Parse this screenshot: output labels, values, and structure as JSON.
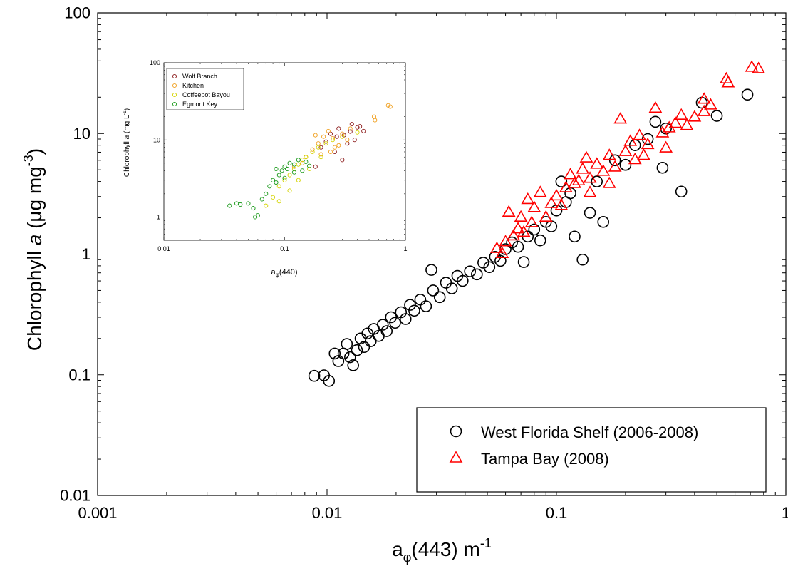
{
  "chart_data": [
    {
      "type": "scatter",
      "scale": "log-log",
      "xlabel": "a",
      "xlabel_sub": "φ",
      "xlabel_rest": "(443) m",
      "xlabel_sup": "-1",
      "ylabel_pre": "Chlorophyll ",
      "ylabel_a": "a",
      "ylabel_rest": " (μ",
      "ylabel_mid": "g mg",
      "ylabel_sup": "-3",
      "ylabel_close": ")",
      "xlim": [
        0.001,
        1
      ],
      "ylim": [
        0.01,
        100
      ],
      "x_ticks": [
        "0.001",
        "0.01",
        "0.1",
        "1"
      ],
      "y_ticks": [
        "0.01",
        "0.1",
        "1",
        "10",
        "100"
      ],
      "legend_position": "bottom-right",
      "series": [
        {
          "name": "West Florida Shelf (2006-2008)",
          "marker": "circle",
          "color": "#000000",
          "points": [
            [
              0.0088,
              0.098
            ],
            [
              0.0097,
              0.099
            ],
            [
              0.0102,
              0.089
            ],
            [
              0.0108,
              0.15
            ],
            [
              0.0112,
              0.13
            ],
            [
              0.0118,
              0.15
            ],
            [
              0.0122,
              0.18
            ],
            [
              0.0126,
              0.14
            ],
            [
              0.013,
              0.12
            ],
            [
              0.0135,
              0.16
            ],
            [
              0.014,
              0.2
            ],
            [
              0.0145,
              0.17
            ],
            [
              0.015,
              0.22
            ],
            [
              0.0155,
              0.19
            ],
            [
              0.016,
              0.24
            ],
            [
              0.0168,
              0.21
            ],
            [
              0.0175,
              0.26
            ],
            [
              0.0182,
              0.23
            ],
            [
              0.019,
              0.3
            ],
            [
              0.0198,
              0.27
            ],
            [
              0.021,
              0.33
            ],
            [
              0.022,
              0.29
            ],
            [
              0.023,
              0.38
            ],
            [
              0.024,
              0.34
            ],
            [
              0.0255,
              0.42
            ],
            [
              0.027,
              0.37
            ],
            [
              0.0285,
              0.74
            ],
            [
              0.029,
              0.5
            ],
            [
              0.031,
              0.44
            ],
            [
              0.033,
              0.58
            ],
            [
              0.035,
              0.52
            ],
            [
              0.037,
              0.66
            ],
            [
              0.039,
              0.6
            ],
            [
              0.042,
              0.72
            ],
            [
              0.045,
              0.68
            ],
            [
              0.048,
              0.85
            ],
            [
              0.051,
              0.78
            ],
            [
              0.054,
              0.95
            ],
            [
              0.057,
              0.88
            ],
            [
              0.06,
              1.1
            ],
            [
              0.064,
              1.25
            ],
            [
              0.068,
              1.15
            ],
            [
              0.072,
              0.86
            ],
            [
              0.075,
              1.4
            ],
            [
              0.08,
              1.6
            ],
            [
              0.085,
              1.3
            ],
            [
              0.09,
              1.85
            ],
            [
              0.095,
              1.7
            ],
            [
              0.1,
              2.3
            ],
            [
              0.105,
              4.0
            ],
            [
              0.11,
              2.7
            ],
            [
              0.115,
              3.2
            ],
            [
              0.12,
              1.4
            ],
            [
              0.13,
              0.9
            ],
            [
              0.14,
              2.2
            ],
            [
              0.16,
              1.85
            ],
            [
              0.2,
              5.5
            ],
            [
              0.29,
              5.2
            ],
            [
              0.35,
              3.3
            ],
            [
              0.43,
              18.0
            ],
            [
              0.5,
              14.0
            ],
            [
              0.68,
              21.0
            ],
            [
              0.25,
              9.0
            ],
            [
              0.3,
              11.0
            ],
            [
              0.27,
              12.5
            ],
            [
              0.22,
              8.0
            ],
            [
              0.18,
              6.0
            ],
            [
              0.15,
              4.0
            ]
          ]
        },
        {
          "name": "Tampa Bay (2008)",
          "marker": "triangle",
          "color": "#ff0000",
          "points": [
            [
              0.055,
              1.1
            ],
            [
              0.058,
              1.0
            ],
            [
              0.06,
              1.25
            ],
            [
              0.062,
              2.2
            ],
            [
              0.065,
              1.4
            ],
            [
              0.068,
              1.6
            ],
            [
              0.07,
              2.0
            ],
            [
              0.072,
              1.5
            ],
            [
              0.075,
              2.8
            ],
            [
              0.078,
              1.8
            ],
            [
              0.08,
              2.4
            ],
            [
              0.085,
              3.2
            ],
            [
              0.09,
              2.0
            ],
            [
              0.095,
              2.6
            ],
            [
              0.1,
              3.0
            ],
            [
              0.105,
              2.5
            ],
            [
              0.11,
              3.5
            ],
            [
              0.115,
              4.5
            ],
            [
              0.12,
              3.8
            ],
            [
              0.125,
              4.0
            ],
            [
              0.13,
              5.0
            ],
            [
              0.135,
              6.2
            ],
            [
              0.14,
              4.2
            ],
            [
              0.15,
              5.5
            ],
            [
              0.16,
              4.8
            ],
            [
              0.17,
              6.5
            ],
            [
              0.18,
              5.2
            ],
            [
              0.19,
              13.0
            ],
            [
              0.2,
              7.0
            ],
            [
              0.21,
              8.5
            ],
            [
              0.22,
              6.0
            ],
            [
              0.23,
              9.5
            ],
            [
              0.25,
              8.0
            ],
            [
              0.27,
              16.0
            ],
            [
              0.29,
              10.0
            ],
            [
              0.31,
              11.0
            ],
            [
              0.33,
              12.0
            ],
            [
              0.35,
              14.0
            ],
            [
              0.37,
              11.5
            ],
            [
              0.4,
              13.5
            ],
            [
              0.44,
              19.0
            ],
            [
              0.47,
              17.0
            ],
            [
              0.55,
              28.0
            ],
            [
              0.56,
              26.0
            ],
            [
              0.71,
              35.0
            ],
            [
              0.76,
              34.0
            ],
            [
              0.44,
              15.0
            ],
            [
              0.3,
              7.5
            ],
            [
              0.24,
              6.5
            ],
            [
              0.17,
              3.8
            ],
            [
              0.14,
              3.2
            ]
          ]
        }
      ]
    },
    {
      "type": "scatter",
      "scale": "log-log",
      "inset": true,
      "xlabel": "a",
      "xlabel_sub": "φ",
      "xlabel_rest": "(440)",
      "ylabel_pre": "Chlorophyll ",
      "ylabel_a": "a",
      "ylabel_rest": " (mg L",
      "ylabel_sup": "-1",
      "ylabel_close": ")",
      "xlim": [
        0.01,
        1
      ],
      "ylim": [
        0.5,
        100
      ],
      "x_ticks": [
        "0.01",
        "0.1",
        "1"
      ],
      "y_ticks": [
        "1",
        "10",
        "100"
      ],
      "legend_position": "top-left",
      "series": [
        {
          "name": "Wolf Branch",
          "marker": "circle",
          "color": "#8b1a1a",
          "points": [
            [
              0.2,
              8.0
            ],
            [
              0.24,
              12.0
            ],
            [
              0.28,
              14.0
            ],
            [
              0.31,
              11.5
            ],
            [
              0.35,
              12.8
            ],
            [
              0.38,
              10.0
            ],
            [
              0.42,
              15.0
            ],
            [
              0.45,
              13.0
            ],
            [
              0.26,
              7.0
            ],
            [
              0.3,
              5.5
            ],
            [
              0.22,
              9.5
            ],
            [
              0.33,
              9.0
            ],
            [
              0.18,
              4.5
            ],
            [
              0.4,
              14.5
            ],
            [
              0.27,
              11.0
            ],
            [
              0.36,
              16.0
            ]
          ]
        },
        {
          "name": "Kitchen",
          "marker": "circle",
          "color": "#f0a020",
          "points": [
            [
              0.12,
              4.5
            ],
            [
              0.15,
              6.0
            ],
            [
              0.17,
              7.5
            ],
            [
              0.19,
              9.0
            ],
            [
              0.21,
              11.0
            ],
            [
              0.23,
              13.0
            ],
            [
              0.25,
              10.5
            ],
            [
              0.28,
              8.5
            ],
            [
              0.3,
              12.0
            ],
            [
              0.35,
              14.0
            ],
            [
              0.55,
              20.0
            ],
            [
              0.56,
              18.0
            ],
            [
              0.72,
              28.0
            ],
            [
              0.75,
              27.0
            ],
            [
              0.18,
              11.5
            ],
            [
              0.2,
              6.5
            ],
            [
              0.26,
              8.0
            ],
            [
              0.14,
              5.0
            ],
            [
              0.33,
              10.0
            ],
            [
              0.24,
              7.0
            ]
          ]
        },
        {
          "name": "Coffeepot Bayou",
          "marker": "circle",
          "color": "#d4d400",
          "points": [
            [
              0.07,
              1.4
            ],
            [
              0.08,
              1.8
            ],
            [
              0.09,
              2.5
            ],
            [
              0.1,
              3.0
            ],
            [
              0.11,
              3.5
            ],
            [
              0.12,
              4.2
            ],
            [
              0.13,
              4.8
            ],
            [
              0.14,
              5.5
            ],
            [
              0.15,
              6.0
            ],
            [
              0.17,
              7.0
            ],
            [
              0.19,
              8.0
            ],
            [
              0.22,
              9.0
            ],
            [
              0.25,
              10.0
            ],
            [
              0.3,
              11.0
            ],
            [
              0.4,
              12.5
            ],
            [
              0.11,
              2.2
            ],
            [
              0.13,
              3.0
            ],
            [
              0.16,
              4.2
            ],
            [
              0.2,
              6.0
            ],
            [
              0.09,
              1.6
            ]
          ]
        },
        {
          "name": "Egmont Key",
          "marker": "circle",
          "color": "#1a9a1a",
          "points": [
            [
              0.035,
              1.4
            ],
            [
              0.04,
              1.5
            ],
            [
              0.043,
              1.45
            ],
            [
              0.05,
              1.5
            ],
            [
              0.055,
              1.3
            ],
            [
              0.057,
              1.0
            ],
            [
              0.06,
              1.05
            ],
            [
              0.065,
              1.7
            ],
            [
              0.07,
              2.0
            ],
            [
              0.075,
              2.5
            ],
            [
              0.08,
              3.0
            ],
            [
              0.085,
              2.8
            ],
            [
              0.09,
              3.5
            ],
            [
              0.095,
              4.0
            ],
            [
              0.1,
              4.5
            ],
            [
              0.105,
              4.2
            ],
            [
              0.11,
              5.0
            ],
            [
              0.12,
              4.8
            ],
            [
              0.13,
              5.5
            ],
            [
              0.14,
              4.0
            ],
            [
              0.15,
              5.2
            ],
            [
              0.16,
              4.6
            ],
            [
              0.12,
              3.8
            ],
            [
              0.1,
              3.2
            ],
            [
              0.085,
              4.2
            ]
          ]
        }
      ]
    }
  ]
}
